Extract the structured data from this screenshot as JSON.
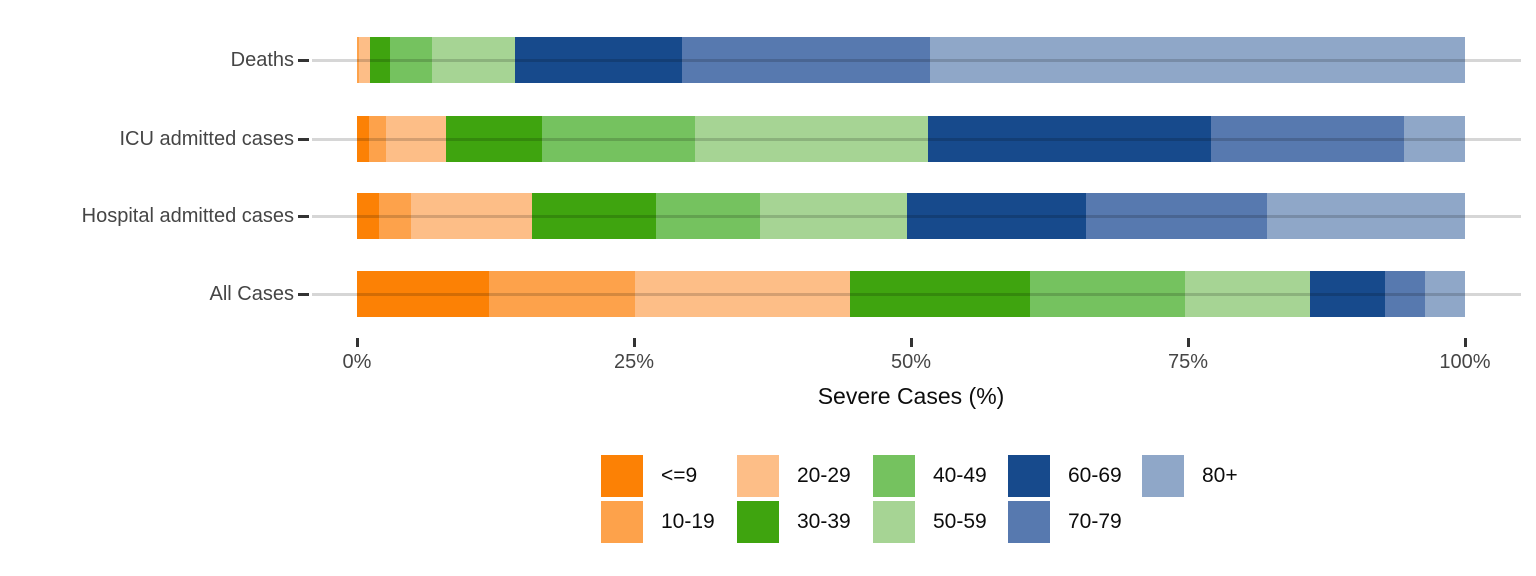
{
  "chart_data": {
    "type": "bar",
    "orientation": "horizontal",
    "stacked": true,
    "title": "",
    "xlabel": "Severe Cases (%)",
    "ylabel": "",
    "xlim": [
      0,
      100
    ],
    "grid": "horizontal-row-lines",
    "legend_position": "bottom",
    "x_ticks": [
      {
        "label": "0%",
        "value": 0
      },
      {
        "label": "25%",
        "value": 25
      },
      {
        "label": "50%",
        "value": 50
      },
      {
        "label": "75%",
        "value": 75
      },
      {
        "label": "100%",
        "value": 100
      }
    ],
    "categories": [
      "Deaths",
      "ICU admitted cases",
      "Hospital admitted cases",
      "All Cases"
    ],
    "groups": [
      "<=9",
      "10-19",
      "20-29",
      "30-39",
      "40-49",
      "50-59",
      "60-69",
      "70-79",
      "80+"
    ],
    "colors": [
      "#fc8105",
      "#fda24b",
      "#fdbe87",
      "#3fa40f",
      "#75c25f",
      "#a6d494",
      "#174a8c",
      "#5779af",
      "#8fa7c8"
    ],
    "series": [
      {
        "name": "<=9",
        "values": [
          0.0,
          1.1,
          2.0,
          11.9
        ]
      },
      {
        "name": "10-19",
        "values": [
          0.2,
          1.5,
          2.9,
          13.2
        ]
      },
      {
        "name": "20-29",
        "values": [
          1.0,
          5.4,
          10.9,
          19.4
        ]
      },
      {
        "name": "30-39",
        "values": [
          1.8,
          8.7,
          11.2,
          16.2
        ]
      },
      {
        "name": "40-49",
        "values": [
          3.8,
          13.8,
          9.4,
          14.0
        ]
      },
      {
        "name": "50-59",
        "values": [
          7.5,
          21.0,
          13.2,
          11.3
        ]
      },
      {
        "name": "60-69",
        "values": [
          15.0,
          25.6,
          16.2,
          6.8
        ]
      },
      {
        "name": "70-79",
        "values": [
          22.4,
          17.4,
          16.3,
          3.6
        ]
      },
      {
        "name": "80+",
        "values": [
          48.3,
          5.5,
          17.9,
          3.6
        ]
      }
    ]
  }
}
